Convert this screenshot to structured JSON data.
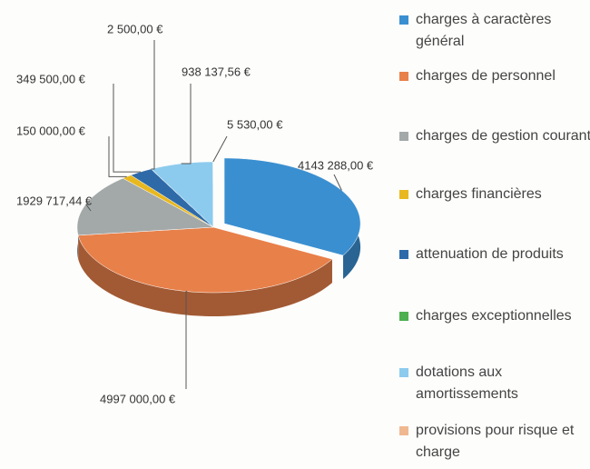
{
  "chart_data": {
    "type": "pie",
    "categories": [
      "charges à caractères général",
      "charges de personnel",
      "charges de gestion courante",
      "charges financières",
      "attenuation de produits",
      "charges exceptionnelles",
      "dotations aux amortissements",
      "provisions pour risque et charge"
    ],
    "values": [
      4143288,
      4997000,
      1929717.44,
      150000,
      349500,
      2500,
      938137.56,
      5530
    ],
    "value_labels": [
      "4143 288,00 €",
      "4997 000,00 €",
      "1929 717,44 €",
      "150 000,00 €",
      "349 500,00 €",
      "2 500,00 €",
      "938 137,56 €",
      "5 530,00 €"
    ],
    "colors": [
      "#3a8fd0",
      "#e8804a",
      "#a3a9a9",
      "#e8b820",
      "#2f6aa8",
      "#4caf50",
      "#8ccbee",
      "#f0b890"
    ]
  }
}
